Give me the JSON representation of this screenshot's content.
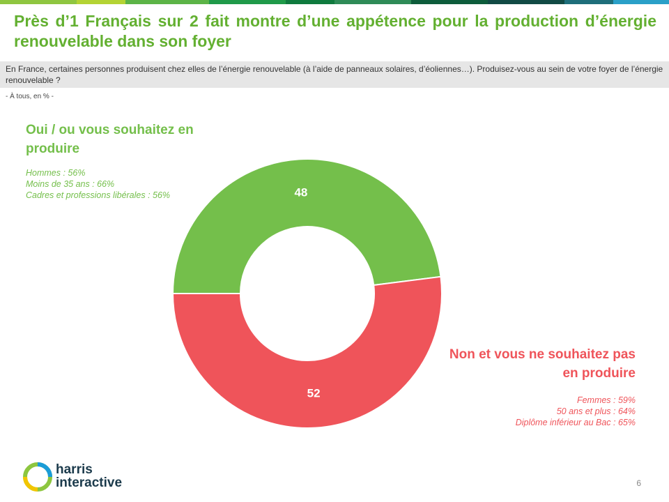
{
  "chart_data": {
    "type": "pie",
    "title": "Près d’1 Français sur 2 fait montre d’une appétence pour la production d’énergie renouvelable dans son foyer",
    "subtitle": "En France, certaines personnes produisent chez elles de l’énergie renouvelable (à l’aide de panneaux solaires, d’éoliennes…). Produisez-vous au sein de votre foyer de l’énergie renouvelable ?",
    "note": "- À tous, en % -",
    "categories": [
      "Oui / ou vous souhaitez en produire",
      "Non et vous ne souhaitez pas en produire"
    ],
    "values": [
      48,
      52
    ],
    "colors": [
      "#74bf4b",
      "#ef545a"
    ],
    "details": [
      [
        "Hommes : 56%",
        "Moins de 35 ans : 66%",
        "Cadres et professions libérales : 56%"
      ],
      [
        "Femmes : 59%",
        "50 ans et plus : 64%",
        "Diplôme inférieur au Bac : 65%"
      ]
    ]
  },
  "footer": {
    "logo_lines": [
      "harris",
      "interactive"
    ],
    "page": "6"
  }
}
